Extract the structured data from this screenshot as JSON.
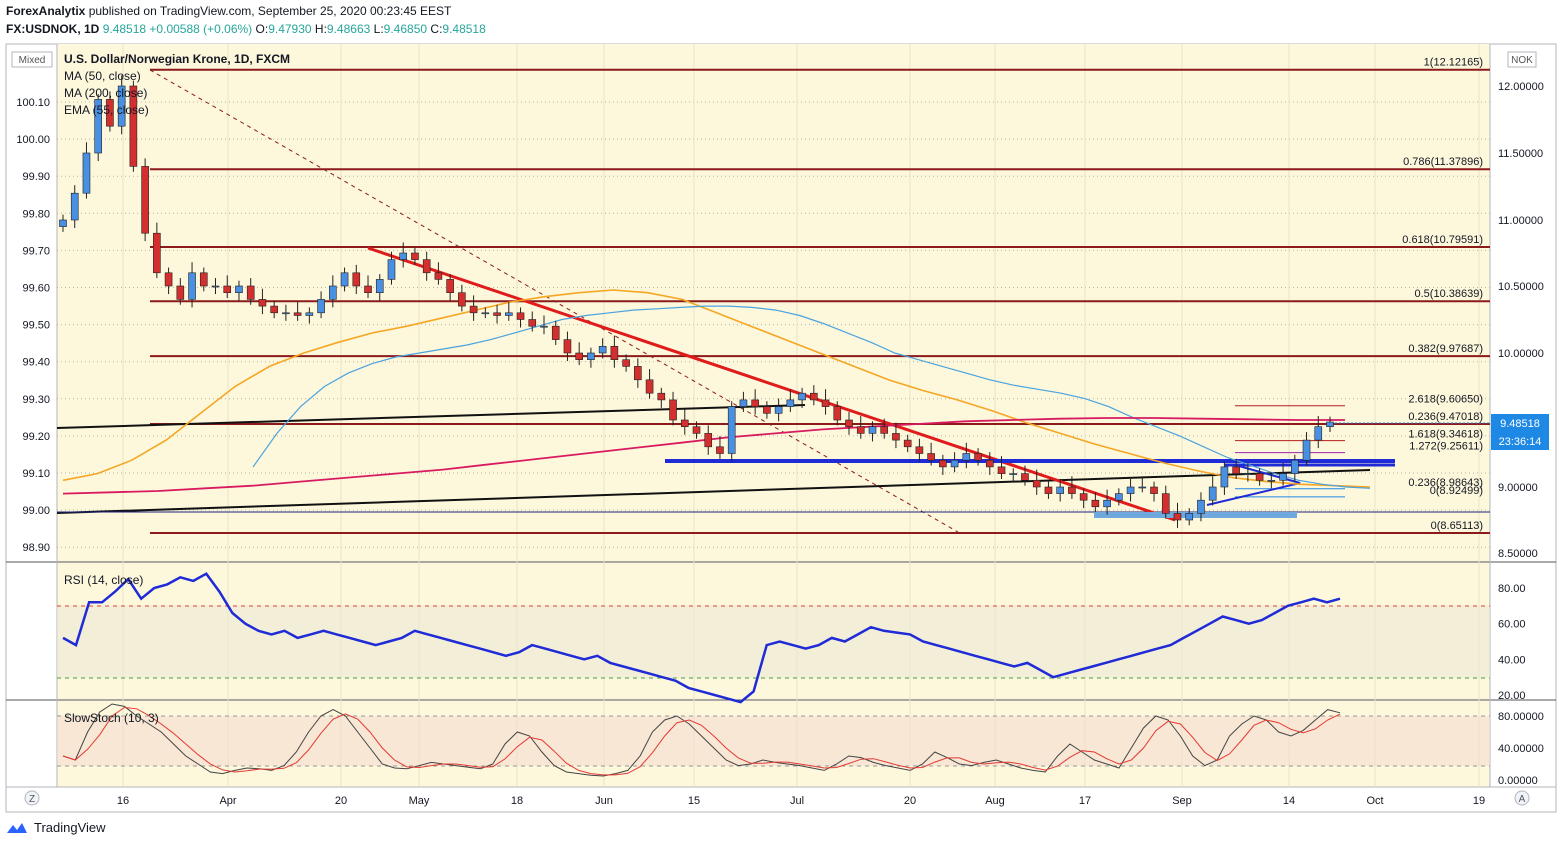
{
  "header": {
    "publisher": "ForexAnalytix",
    "published_text": "published on TradingView.com, September 25, 2020 00:23:45 EEST",
    "symbol": "FX:USDNOK, 1D",
    "last": "9.48518",
    "change": "+0.00588 (+0.06%)",
    "o_label": "O:",
    "o": "9.47930",
    "h_label": "H:",
    "h": "9.48663",
    "l_label": "L:",
    "l": "9.46850",
    "c_label": "C:",
    "c": "9.48518"
  },
  "main_pane": {
    "title": "U.S. Dollar/Norwegian Krone, 1D, FXCM",
    "indicators": [
      "MA (50, close)",
      "MA (200, close)",
      "EMA (55, close)"
    ],
    "left_scale_badge": "Mixed",
    "right_scale_badge": "NOK",
    "left_ticks": [
      "100.10",
      "100.00",
      "99.90",
      "99.80",
      "99.70",
      "99.60",
      "99.50",
      "99.40",
      "99.30",
      "99.20",
      "99.10",
      "99.00",
      "98.90"
    ],
    "right_ticks": [
      "12.00000",
      "11.50000",
      "11.00000",
      "10.50000",
      "10.00000",
      "9.00000",
      "8.50000"
    ],
    "price_badge": "9.48518",
    "countdown_badge": "23:36:14"
  },
  "fib_levels": [
    {
      "label": "1(12.12165)",
      "price": 12.12165
    },
    {
      "label": "0.786(11.37896)",
      "price": 11.37896
    },
    {
      "label": "0.618(10.79591)",
      "price": 10.79591
    },
    {
      "label": "0.5(10.38639)",
      "price": 10.38639
    },
    {
      "label": "0.382(9.97687)",
      "price": 9.97687
    },
    {
      "label": "0.236(9.47018)",
      "price": 9.47018
    },
    {
      "label": "0(8.65113)",
      "price": 8.65113
    }
  ],
  "fib_ext_levels": [
    {
      "label": "2.618(9.60650)",
      "price": 9.6065
    },
    {
      "label": "1.618(9.34618)",
      "price": 9.34618
    },
    {
      "label": "1.272(9.25611)",
      "price": 9.25611
    },
    {
      "label": "0.236(8.98643)",
      "price": 8.98643
    },
    {
      "label": "0(8.92499)",
      "price": 8.92499
    }
  ],
  "chart_data": {
    "type": "candlestick",
    "symbol": "FX:USDNOK",
    "timeframe": "1D",
    "x_ticks": [
      "16",
      "Apr",
      "20",
      "May",
      "18",
      "Jun",
      "15",
      "Jul",
      "20",
      "Aug",
      "17",
      "Sep",
      "14",
      "Oct",
      "19"
    ],
    "close_series": [
      11.0,
      11.2,
      11.5,
      11.9,
      11.7,
      12.0,
      11.4,
      10.9,
      10.6,
      10.5,
      10.4,
      10.6,
      10.5,
      10.5,
      10.45,
      10.5,
      10.4,
      10.35,
      10.3,
      10.3,
      10.28,
      10.3,
      10.4,
      10.5,
      10.6,
      10.5,
      10.45,
      10.55,
      10.7,
      10.75,
      10.7,
      10.6,
      10.55,
      10.45,
      10.35,
      10.3,
      10.3,
      10.28,
      10.3,
      10.25,
      10.2,
      10.2,
      10.1,
      10.0,
      9.95,
      10.0,
      10.05,
      9.95,
      9.9,
      9.8,
      9.7,
      9.65,
      9.5,
      9.45,
      9.4,
      9.3,
      9.25,
      9.6,
      9.65,
      9.6,
      9.55,
      9.6,
      9.65,
      9.7,
      9.65,
      9.6,
      9.5,
      9.45,
      9.4,
      9.45,
      9.4,
      9.35,
      9.3,
      9.25,
      9.2,
      9.15,
      9.2,
      9.25,
      9.2,
      9.15,
      9.1,
      9.1,
      9.05,
      9.0,
      8.95,
      9.0,
      8.95,
      8.9,
      8.85,
      8.9,
      8.95,
      9.0,
      9.0,
      8.95,
      8.8,
      8.75,
      8.8,
      8.9,
      9.0,
      9.15,
      9.1,
      9.1,
      9.05,
      9.05,
      9.1,
      9.2,
      9.35,
      9.45,
      9.485
    ],
    "ma50": [
      null,
      null,
      null,
      null,
      null,
      null,
      null,
      null,
      9.15,
      9.4,
      9.6,
      9.75,
      9.85,
      9.92,
      9.97,
      10.0,
      10.03,
      10.06,
      10.1,
      10.15,
      10.2,
      10.25,
      10.28,
      10.3,
      10.32,
      10.33,
      10.34,
      10.35,
      10.35,
      10.34,
      10.32,
      10.28,
      10.22,
      10.15,
      10.08,
      10.0,
      9.95,
      9.9,
      9.85,
      9.8,
      9.76,
      9.73,
      9.7,
      9.66,
      9.6,
      9.52,
      9.45,
      9.38,
      9.3,
      9.22,
      9.16,
      9.1,
      9.05,
      9.02,
      9.0,
      8.99
    ],
    "ma200": [
      8.95,
      8.96,
      8.97,
      8.99,
      9.01,
      9.04,
      9.07,
      9.1,
      9.13,
      9.17,
      9.21,
      9.25,
      9.29,
      9.33,
      9.37,
      9.4,
      9.43,
      9.45,
      9.47,
      9.49,
      9.5,
      9.51,
      9.515,
      9.515,
      9.51,
      9.505,
      9.5,
      9.5
    ],
    "ema55": [
      9.05,
      9.1,
      9.2,
      9.35,
      9.55,
      9.75,
      9.9,
      10.0,
      10.08,
      10.15,
      10.2,
      10.26,
      10.32,
      10.38,
      10.42,
      10.45,
      10.47,
      10.45,
      10.4,
      10.3,
      10.2,
      10.1,
      10.0,
      9.9,
      9.8,
      9.72,
      9.65,
      9.57,
      9.48,
      9.4,
      9.32,
      9.25,
      9.18,
      9.12,
      9.07,
      9.04,
      9.02,
      9.01,
      9.0
    ],
    "right_axis_range": [
      8.45,
      12.25
    ],
    "left_axis_range": [
      98.86,
      100.21
    ],
    "rsi": {
      "label": "RSI (14, close)",
      "ticks": [
        "80.00",
        "60.00",
        "40.00",
        "20.00"
      ],
      "levels": [
        70,
        30
      ],
      "values": [
        52,
        48,
        72,
        72,
        78,
        85,
        74,
        80,
        82,
        86,
        84,
        88,
        78,
        66,
        60,
        56,
        54,
        56,
        52,
        54,
        56,
        54,
        52,
        50,
        48,
        50,
        52,
        56,
        54,
        52,
        50,
        48,
        46,
        44,
        42,
        44,
        48,
        46,
        44,
        42,
        40,
        42,
        38,
        36,
        34,
        32,
        30,
        28,
        24,
        22,
        20,
        18,
        16,
        22,
        48,
        50,
        48,
        46,
        48,
        52,
        50,
        54,
        58,
        56,
        55,
        54,
        50,
        48,
        46,
        44,
        42,
        40,
        38,
        36,
        38,
        34,
        30,
        32,
        34,
        36,
        38,
        40,
        42,
        44,
        46,
        48,
        52,
        56,
        60,
        64,
        62,
        60,
        62,
        66,
        70,
        72,
        74,
        72,
        74
      ]
    },
    "stoch": {
      "label": "SlowStoch (10, 3)",
      "ticks": [
        "80.00000",
        "40.00000",
        "0.00000"
      ],
      "levels": [
        80,
        20
      ],
      "k": [
        30,
        25,
        60,
        85,
        95,
        92,
        80,
        70,
        60,
        45,
        30,
        20,
        10,
        8,
        12,
        15,
        14,
        12,
        18,
        35,
        60,
        80,
        88,
        80,
        60,
        40,
        20,
        15,
        14,
        18,
        22,
        20,
        18,
        16,
        14,
        20,
        45,
        60,
        55,
        35,
        18,
        10,
        8,
        6,
        5,
        8,
        12,
        30,
        60,
        75,
        80,
        70,
        55,
        40,
        25,
        18,
        20,
        25,
        22,
        20,
        18,
        15,
        12,
        20,
        30,
        28,
        22,
        18,
        15,
        12,
        20,
        35,
        28,
        20,
        18,
        22,
        25,
        20,
        15,
        12,
        10,
        30,
        45,
        35,
        25,
        20,
        15,
        40,
        65,
        80,
        75,
        55,
        30,
        18,
        25,
        55,
        70,
        80,
        75,
        60,
        55,
        62,
        75,
        88,
        84
      ]
    }
  },
  "x_axis": {
    "labels": [
      "16",
      "Apr",
      "20",
      "May",
      "18",
      "Jun",
      "15",
      "Jul",
      "20",
      "Aug",
      "17",
      "Sep",
      "14",
      "Oct",
      "19"
    ]
  },
  "footer": {
    "brand": "TradingView",
    "left_btn": "Z",
    "right_btn": "A"
  }
}
